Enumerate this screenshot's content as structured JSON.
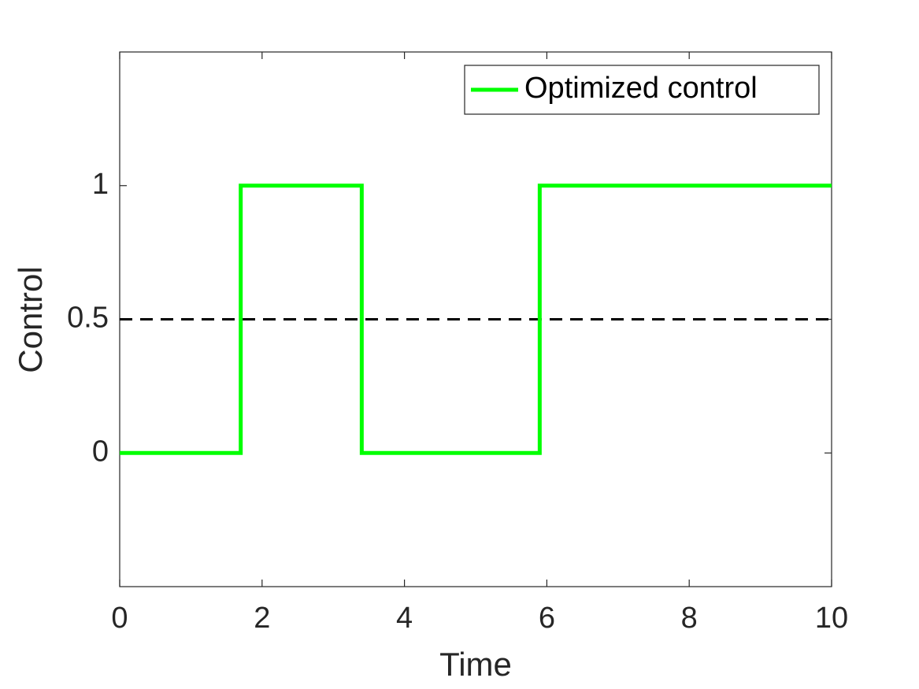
{
  "chart_data": {
    "type": "line",
    "xlabel": "Time",
    "ylabel": "Control",
    "series": [
      {
        "name": "Optimized control",
        "color": "#00ff00",
        "x": [
          0,
          1.7,
          1.7,
          3.4,
          3.4,
          5.9,
          5.9,
          10
        ],
        "values": [
          0,
          0,
          1,
          1,
          0,
          0,
          1,
          1
        ]
      }
    ],
    "hline": {
      "value": 0.5,
      "color": "#000000",
      "style": "dashed"
    },
    "xlim": [
      0,
      10
    ],
    "xticks": [
      0,
      2,
      4,
      6,
      8,
      10
    ],
    "ylim": [
      -0.5,
      1.5
    ],
    "yticks": [
      0,
      0.5,
      1
    ],
    "legend": "top-right",
    "grid": false
  }
}
